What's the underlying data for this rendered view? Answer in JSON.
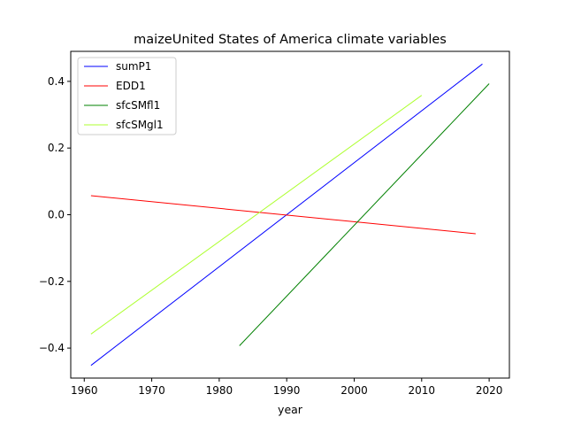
{
  "chart_data": {
    "type": "line",
    "title": "maizeUnited States of America climate variables",
    "xlabel": "year",
    "ylabel": "",
    "xlim": [
      1958,
      2023
    ],
    "ylim": [
      -0.49,
      0.49
    ],
    "xticks": [
      1960,
      1970,
      1980,
      1990,
      2000,
      2010,
      2020
    ],
    "yticks": [
      -0.4,
      -0.2,
      0.0,
      0.2,
      0.4
    ],
    "ytick_labels": [
      "−0.4",
      "−0.2",
      "0.0",
      "0.2",
      "0.4"
    ],
    "grid": false,
    "legend_position": "upper left",
    "series": [
      {
        "name": "sumP1",
        "color": "#0000ff",
        "x": [
          1961,
          2019
        ],
        "y": [
          -0.452,
          0.452
        ]
      },
      {
        "name": "EDD1",
        "color": "#ff0000",
        "x": [
          1961,
          2018
        ],
        "y": [
          0.057,
          -0.057
        ]
      },
      {
        "name": "sfcSMfl1",
        "color": "#008000",
        "x": [
          1983,
          2020
        ],
        "y": [
          -0.393,
          0.393
        ]
      },
      {
        "name": "sfcSMgl1",
        "color": "#adff2f",
        "x": [
          1961,
          2010
        ],
        "y": [
          -0.358,
          0.358
        ]
      }
    ]
  }
}
